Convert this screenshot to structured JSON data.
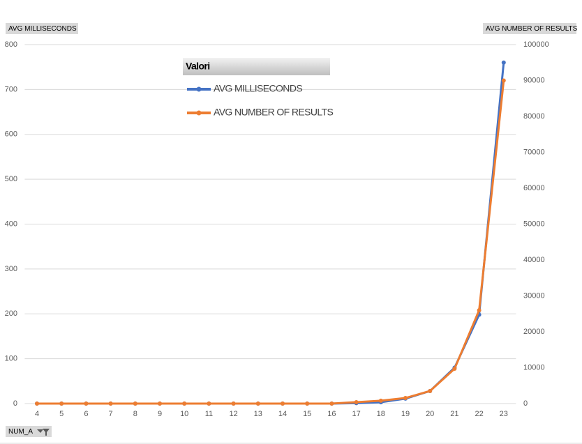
{
  "chart_data": {
    "type": "line",
    "legend_title": "Valori",
    "x_label": "NUM_A",
    "categories": [
      "4",
      "5",
      "6",
      "7",
      "8",
      "9",
      "10",
      "11",
      "12",
      "13",
      "14",
      "15",
      "16",
      "17",
      "18",
      "19",
      "20",
      "21",
      "22",
      "23"
    ],
    "series": [
      {
        "name": "AVG MILLISECONDS",
        "color": "#4472c4",
        "values": [
          0,
          0,
          0,
          0,
          0,
          0,
          0,
          0,
          0,
          0,
          0,
          0,
          0,
          1,
          3,
          11,
          28,
          80,
          198,
          760
        ]
      },
      {
        "name": "AVG NUMBER OF RESULTS",
        "color": "#ed7d31",
        "axis": "y2",
        "values": [
          0,
          0,
          0,
          0,
          0,
          0,
          0,
          0,
          0,
          0,
          0,
          0,
          0,
          400,
          800,
          1550,
          3500,
          9700,
          26000,
          90000
        ]
      }
    ],
    "ylim": [
      0,
      800
    ],
    "yticks": [
      0,
      100,
      200,
      300,
      400,
      500,
      600,
      700,
      800
    ],
    "y2lim": [
      0,
      100000
    ],
    "y2ticks": [
      0,
      10000,
      20000,
      30000,
      40000,
      50000,
      60000,
      70000,
      80000,
      90000,
      100000
    ],
    "grid": true
  }
}
